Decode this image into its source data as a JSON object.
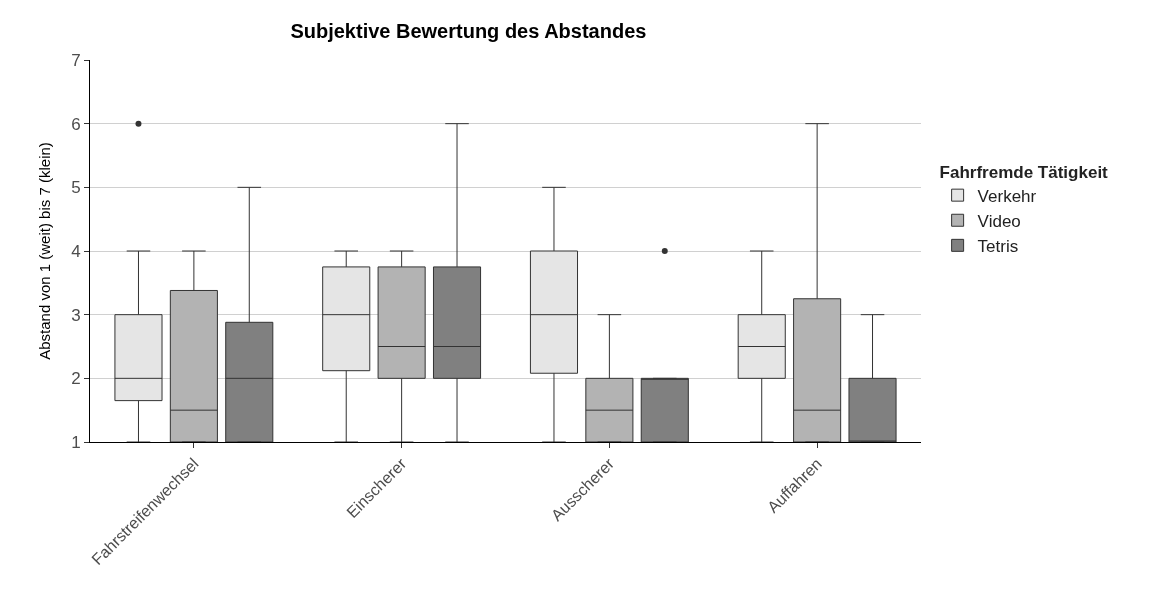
{
  "chart_data": {
    "type": "box",
    "title": "Subjektive Bewertung des Abstandes",
    "ylabel": "Abstand von 1 (weit) bis 7 (klein)",
    "legend_title": "Fahrfremde Tätigkeit",
    "categories": [
      "Fahrstreifenwechsel",
      "Einscherer",
      "Ausscherer",
      "Auffahren"
    ],
    "series": [
      {
        "name": "Verkehr",
        "color": "#e5e5e5",
        "boxes": [
          {
            "low": 1,
            "q1": 1.65,
            "median": 2,
            "q3": 3,
            "high": 4,
            "outliers": [
              6
            ]
          },
          {
            "low": 1,
            "q1": 2.12,
            "median": 3,
            "q3": 3.75,
            "high": 4
          },
          {
            "low": 1,
            "q1": 2.08,
            "median": 3,
            "q3": 4,
            "high": 5
          },
          {
            "low": 1,
            "q1": 2,
            "median": 2.5,
            "q3": 3,
            "high": 4
          }
        ]
      },
      {
        "name": "Video",
        "color": "#b3b3b3",
        "boxes": [
          {
            "low": 1,
            "q1": 1,
            "median": 1.5,
            "q3": 3.38,
            "high": 4
          },
          {
            "low": 1,
            "q1": 2,
            "median": 2.5,
            "q3": 3.75,
            "high": 4
          },
          {
            "low": 1,
            "q1": 1,
            "median": 1.5,
            "q3": 2,
            "high": 3
          },
          {
            "low": 1,
            "q1": 1,
            "median": 1.5,
            "q3": 3.25,
            "high": 6
          }
        ]
      },
      {
        "name": "Tetris",
        "color": "#808080",
        "boxes": [
          {
            "low": 1,
            "q1": 1,
            "median": 2,
            "q3": 2.88,
            "high": 5
          },
          {
            "low": 1,
            "q1": 2,
            "median": 2.5,
            "q3": 3.75,
            "high": 6
          },
          {
            "low": 1,
            "q1": 1,
            "median": 2,
            "q3": 2,
            "high": 2,
            "outliers": [
              4
            ]
          },
          {
            "low": 1,
            "q1": 1,
            "median": 1,
            "q3": 2,
            "high": 3
          }
        ]
      }
    ],
    "ylim": [
      1,
      7
    ],
    "yticks": [
      1,
      2,
      3,
      4,
      5,
      6,
      7
    ],
    "grid": "y",
    "legend": "right"
  }
}
